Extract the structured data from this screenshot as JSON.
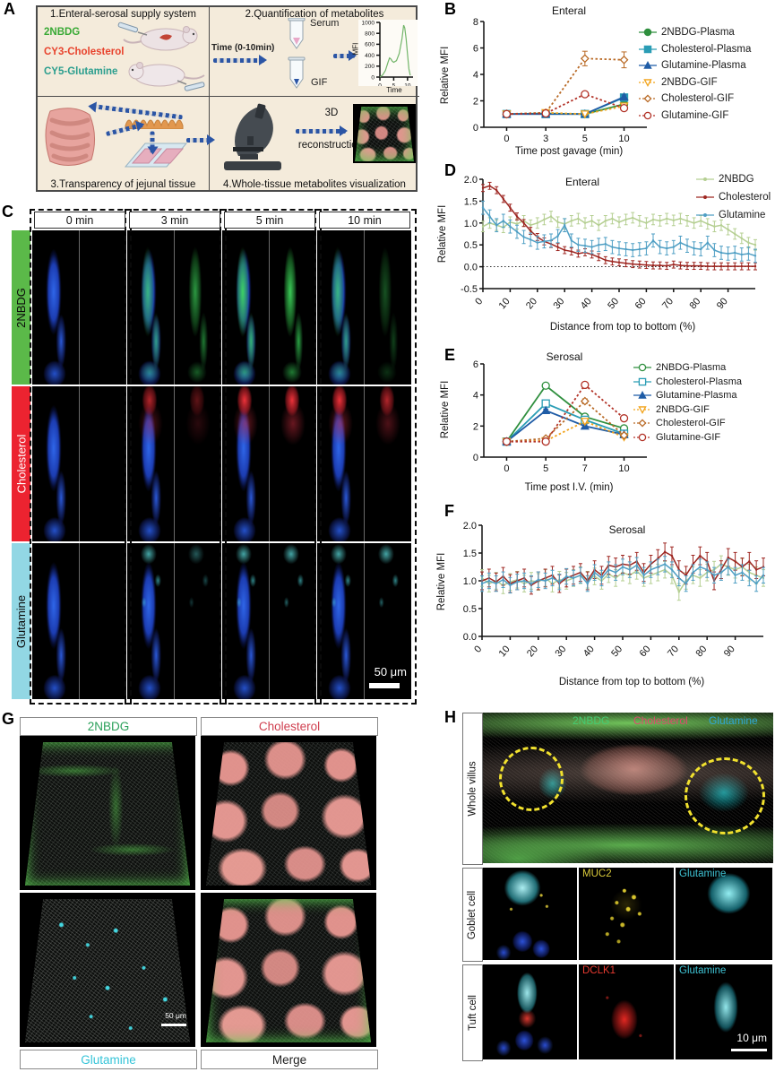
{
  "panels": {
    "A": {
      "label": "A",
      "box1": {
        "title": "1.Enteral-serosal supply system",
        "tracers": [
          {
            "name": "2NBDG",
            "color": "#39a935"
          },
          {
            "name": "CY3-Cholesterol",
            "color": "#e8432d"
          },
          {
            "name": "CY5-Glutamine",
            "color": "#2b9e8e"
          }
        ]
      },
      "box2": {
        "title": "2.Quantification of metabolites",
        "time_label": "Time (0-10min)",
        "tube_top": "Serum",
        "tube_bottom": "GIF",
        "inset_ylabel": "MFI",
        "inset_xlabel": "Time"
      },
      "box3": {
        "title": "3.Transparency of jejunal tissue"
      },
      "box4": {
        "title": "4.Whole-tissue metabolites visualization",
        "step1": "3D",
        "step2": "reconstruction"
      }
    },
    "B": {
      "label": "B"
    },
    "C": {
      "label": "C",
      "timepoints": [
        "0 min",
        "3 min",
        "5 min",
        "10 min"
      ],
      "rows": [
        {
          "name": "2NBDG",
          "color": "#5bb949"
        },
        {
          "name": "Cholesterol",
          "color": "#ec2330"
        },
        {
          "name": "Glutamine",
          "color": "#92d7e4"
        }
      ],
      "scalebar": "50 μm"
    },
    "D": {
      "label": "D"
    },
    "E": {
      "label": "E"
    },
    "F": {
      "label": "F"
    },
    "G": {
      "label": "G",
      "top_labels": [
        {
          "name": "2NBDG",
          "color": "#2ba05a"
        },
        {
          "name": "Cholesterol",
          "color": "#d04050"
        }
      ],
      "bottom_labels": [
        {
          "name": "Glutamine",
          "color": "#35c4d8"
        },
        {
          "name": "Merge",
          "color": "#222222"
        }
      ],
      "scalebar": "50 μm"
    },
    "H": {
      "label": "H",
      "legend": [
        {
          "name": "2NBDG",
          "color": "#45cb72"
        },
        {
          "name": "Cholesterol",
          "color": "#e0476e"
        },
        {
          "name": "Glutamine",
          "color": "#2fa8d8"
        }
      ],
      "row_labels": [
        "Whole villus",
        "Goblet cell",
        "Tuft cell"
      ],
      "goblet_marker": "MUC2",
      "goblet_right": "Glutamine",
      "tuft_marker": "DCLK1",
      "tuft_right": "Glutamine",
      "scalebar": "10 μm"
    }
  },
  "chart_data": [
    {
      "type": "line",
      "title": "",
      "ylabel": "MFI",
      "xlabel": "Time",
      "x_mode": "numeric",
      "xlim": [
        0,
        12
      ],
      "xticks": [
        "0",
        "5",
        "10"
      ],
      "ylim": [
        0,
        1000
      ],
      "yticks": [
        "0",
        "200",
        "400",
        "600",
        "800",
        "1000"
      ],
      "x_vals": [
        0,
        1,
        2,
        3,
        3.5,
        4,
        4.5,
        5,
        6,
        7,
        8,
        8.6,
        9,
        9.5,
        10,
        10.5,
        11
      ],
      "fs": 6.5,
      "lw": 1.2,
      "msize": 0,
      "margin": {
        "l": 24,
        "r": 5,
        "t": 3,
        "b": 10
      },
      "series": [
        {
          "name": "MFI",
          "color": "#72b569",
          "marker": "none",
          "values": [
            0,
            40,
            120,
            280,
            350,
            330,
            290,
            270,
            300,
            430,
            700,
            950,
            900,
            700,
            420,
            150,
            30
          ]
        }
      ]
    },
    {
      "type": "line",
      "title": "Enteral",
      "ylabel": "Relative MFI",
      "xlabel": "Time post gavage (min)",
      "x_mode": "categorical",
      "x": [
        "0",
        "3",
        "5",
        "10"
      ],
      "ylim": [
        0,
        8
      ],
      "yticks": [
        "0",
        "2",
        "4",
        "6",
        "8"
      ],
      "fs": 11,
      "lw": 1.8,
      "msize": 4,
      "margin": {
        "l": 30,
        "r": 16,
        "t": 8,
        "b": 24
      },
      "legend_pos": "right",
      "series": [
        {
          "name": "2NBDG-Plasma",
          "color": "#2f8f3e",
          "marker": "circle",
          "open": false,
          "dash": false,
          "values": [
            1.0,
            1.05,
            1.0,
            1.75
          ],
          "err": [
            0.05,
            0.08,
            0.08,
            0.2
          ]
        },
        {
          "name": "Cholesterol-Plasma",
          "color": "#2a9db5",
          "marker": "square",
          "open": false,
          "dash": false,
          "values": [
            1.0,
            1.0,
            1.0,
            2.25
          ],
          "err": [
            0.05,
            0.05,
            0.08,
            0.15
          ]
        },
        {
          "name": "Glutamine-Plasma",
          "color": "#1f5ca6",
          "marker": "triangle",
          "open": false,
          "dash": false,
          "values": [
            1.0,
            1.0,
            1.0,
            2.3
          ],
          "err": [
            0.05,
            0.05,
            0.08,
            0.15
          ]
        },
        {
          "name": "2NBDG-GIF",
          "color": "#f2a31b",
          "marker": "tridown",
          "open": true,
          "dash": true,
          "values": [
            1.0,
            1.1,
            1.0,
            1.6
          ],
          "err": [
            0.05,
            0.1,
            0.08,
            0.15
          ]
        },
        {
          "name": "Cholesterol-GIF",
          "color": "#b96a26",
          "marker": "diamond",
          "open": true,
          "dash": true,
          "values": [
            1.0,
            1.1,
            5.2,
            5.1
          ],
          "err": [
            0.05,
            0.1,
            0.55,
            0.6
          ]
        },
        {
          "name": "Glutamine-GIF",
          "color": "#b23227",
          "marker": "circle",
          "open": true,
          "dash": true,
          "values": [
            1.0,
            1.05,
            2.5,
            1.45
          ],
          "err": [
            0.05,
            0.08,
            0.15,
            0.12
          ]
        }
      ]
    },
    {
      "type": "line",
      "title": "Enteral",
      "ylabel": "Relative MFI",
      "xlabel": "Distance from top to bottom (%)",
      "x_mode": "numeric",
      "xlim": [
        0,
        100
      ],
      "xticks": [
        "0",
        "10",
        "20",
        "30",
        "40",
        "50",
        "60",
        "70",
        "80",
        "90"
      ],
      "rotate_xticks": true,
      "ylim": [
        -0.5,
        2.0
      ],
      "yticks": [
        "-0.5",
        "0.0",
        "0.5",
        "1.0",
        "1.5",
        "2.0"
      ],
      "zero_line": true,
      "fs": 11,
      "lw": 1.5,
      "msize": 2,
      "margin": {
        "l": 36,
        "r": 8,
        "t": 10,
        "b": 40
      },
      "x_vals": [
        0,
        2.5,
        5,
        7.5,
        10,
        12.5,
        15,
        17.5,
        20,
        22.5,
        25,
        27.5,
        30,
        32.5,
        35,
        37.5,
        40,
        42.5,
        45,
        47.5,
        50,
        52.5,
        55,
        57.5,
        60,
        62.5,
        65,
        67.5,
        70,
        72.5,
        75,
        77.5,
        80,
        82.5,
        85,
        87.5,
        90,
        92.5,
        95,
        97.5,
        100
      ],
      "series": [
        {
          "name": "2NBDG",
          "color": "#b5cf92",
          "marker": "dot",
          "err_const": 0.12,
          "values": [
            0.92,
            1.0,
            0.95,
            0.9,
            1.02,
            0.98,
            1.05,
            0.95,
            1.0,
            1.08,
            1.15,
            1.02,
            0.98,
            1.05,
            1.1,
            1.0,
            1.05,
            0.95,
            1.05,
            1.1,
            1.02,
            1.08,
            1.12,
            1.05,
            1.0,
            1.08,
            1.05,
            1.1,
            1.06,
            1.1,
            1.05,
            1.0,
            1.05,
            0.98,
            0.92,
            0.95,
            0.85,
            0.75,
            0.65,
            0.55,
            0.5
          ]
        },
        {
          "name": "Cholesterol",
          "color": "#9e2722",
          "marker": "dot",
          "err_const": 0.08,
          "values": [
            1.8,
            1.85,
            1.75,
            1.55,
            1.35,
            1.15,
            1.0,
            0.82,
            0.68,
            0.58,
            0.52,
            0.45,
            0.38,
            0.35,
            0.3,
            0.33,
            0.28,
            0.22,
            0.15,
            0.12,
            0.1,
            0.08,
            0.06,
            0.05,
            0.04,
            0.03,
            0.03,
            0.02,
            0.05,
            0.03,
            0.02,
            0.02,
            0.02,
            0.01,
            0.01,
            0.01,
            0.01,
            0.01,
            0.01,
            0.01,
            0.01
          ]
        },
        {
          "name": "Glutamine",
          "color": "#4f9fc4",
          "marker": "dot",
          "err_const": 0.15,
          "values": [
            1.35,
            1.15,
            0.95,
            1.05,
            0.92,
            0.8,
            0.68,
            0.62,
            0.55,
            0.58,
            0.6,
            0.7,
            0.95,
            0.6,
            0.5,
            0.48,
            0.45,
            0.5,
            0.52,
            0.45,
            0.42,
            0.4,
            0.38,
            0.4,
            0.42,
            0.6,
            0.45,
            0.42,
            0.45,
            0.55,
            0.48,
            0.42,
            0.4,
            0.55,
            0.38,
            0.32,
            0.3,
            0.32,
            0.28,
            0.3,
            0.25
          ]
        }
      ]
    },
    {
      "type": "line",
      "title": "Serosal",
      "ylabel": "Relative MFI",
      "xlabel": "Time post I.V. (min)",
      "x_mode": "categorical",
      "x": [
        "0",
        "5",
        "7",
        "10"
      ],
      "ylim": [
        0,
        6
      ],
      "yticks": [
        "0",
        "2",
        "4",
        "6"
      ],
      "fs": 11,
      "lw": 1.8,
      "msize": 4,
      "margin": {
        "l": 30,
        "r": 16,
        "t": 6,
        "b": 24
      },
      "series": [
        {
          "name": "2NBDG-Plasma",
          "color": "#2f8f3e",
          "marker": "circle",
          "open": true,
          "dash": false,
          "values": [
            1.0,
            4.6,
            2.6,
            1.85
          ],
          "err": [
            0.05,
            0.15,
            0.12,
            0.1
          ]
        },
        {
          "name": "Cholesterol-Plasma",
          "color": "#2a9db5",
          "marker": "square",
          "open": true,
          "dash": false,
          "values": [
            1.0,
            3.45,
            2.4,
            1.5
          ],
          "err": [
            0.05,
            0.12,
            0.1,
            0.08
          ]
        },
        {
          "name": "Glutamine-Plasma",
          "color": "#1f5ca6",
          "marker": "triangle",
          "open": false,
          "dash": false,
          "values": [
            1.0,
            3.0,
            2.0,
            1.45
          ],
          "err": [
            0.05,
            0.1,
            0.08,
            0.08
          ]
        },
        {
          "name": "2NBDG-GIF",
          "color": "#f2a31b",
          "marker": "tridown",
          "open": true,
          "dash": true,
          "values": [
            1.0,
            1.05,
            2.3,
            1.3
          ],
          "err": [
            0.05,
            0.08,
            0.12,
            0.08
          ]
        },
        {
          "name": "Cholesterol-GIF",
          "color": "#b96a26",
          "marker": "diamond",
          "open": true,
          "dash": true,
          "values": [
            1.0,
            1.2,
            3.6,
            1.4
          ],
          "err": [
            0.05,
            0.1,
            0.15,
            0.1
          ]
        },
        {
          "name": " Glutamine-GIF",
          "color": "#b23227",
          "marker": "circle",
          "open": true,
          "dash": true,
          "values": [
            1.0,
            1.0,
            4.65,
            2.5
          ],
          "err": [
            0.05,
            0.08,
            0.15,
            0.12
          ]
        }
      ]
    },
    {
      "type": "line",
      "title": "Serosal",
      "ylabel": "Relative MFI",
      "xlabel": "Distance from top to bottom (%)",
      "x_mode": "numeric",
      "xlim": [
        0,
        100
      ],
      "xticks": [
        "0",
        "10",
        "20",
        "30",
        "40",
        "50",
        "60",
        "70",
        "80",
        "90"
      ],
      "rotate_xticks": true,
      "ylim": [
        0,
        2.0
      ],
      "yticks": [
        "0.0",
        "0.5",
        "1.0",
        "1.5",
        "2.0"
      ],
      "fs": 11,
      "lw": 1.5,
      "msize": 2,
      "margin": {
        "l": 36,
        "r": 8,
        "t": 14,
        "b": 40
      },
      "x_vals": [
        0,
        2.5,
        5,
        7.5,
        10,
        12.5,
        15,
        17.5,
        20,
        22.5,
        25,
        27.5,
        30,
        32.5,
        35,
        37.5,
        40,
        42.5,
        45,
        47.5,
        50,
        52.5,
        55,
        57.5,
        60,
        62.5,
        65,
        67.5,
        70,
        72.5,
        75,
        77.5,
        80,
        82.5,
        85,
        87.5,
        90,
        92.5,
        95,
        97.5,
        100
      ],
      "series": [
        {
          "name": "2NBDG",
          "color": "#b5cf92",
          "marker": "dot",
          "err_const": 0.15,
          "values": [
            1.05,
            0.95,
            1.0,
            0.92,
            0.98,
            1.02,
            0.95,
            1.0,
            0.98,
            1.05,
            0.95,
            1.02,
            1.0,
            1.05,
            1.1,
            1.02,
            1.08,
            1.0,
            1.12,
            1.05,
            1.15,
            1.1,
            1.18,
            1.05,
            1.1,
            1.15,
            1.2,
            1.1,
            0.8,
            1.0,
            1.1,
            1.05,
            1.15,
            1.2,
            1.3,
            1.25,
            1.2,
            1.25,
            1.15,
            1.1,
            1.05
          ]
        },
        {
          "name": "Cholesterol",
          "color": "#9e2722",
          "marker": "dot",
          "err_const": 0.16,
          "values": [
            1.0,
            1.05,
            0.98,
            1.08,
            0.95,
            1.0,
            1.05,
            0.92,
            1.0,
            1.05,
            1.1,
            0.95,
            1.05,
            1.1,
            1.15,
            1.0,
            1.2,
            1.1,
            1.28,
            1.25,
            1.3,
            1.28,
            1.35,
            1.15,
            1.3,
            1.4,
            1.52,
            1.45,
            1.2,
            1.1,
            1.3,
            1.45,
            1.35,
            1.0,
            1.2,
            1.42,
            1.35,
            1.25,
            1.35,
            1.2,
            1.25
          ]
        },
        {
          "name": "Glutamine",
          "color": "#4f9fc4",
          "marker": "dot",
          "err_const": 0.14,
          "values": [
            0.95,
            1.0,
            0.95,
            1.02,
            0.92,
            0.98,
            1.0,
            0.95,
            1.02,
            1.0,
            1.05,
            0.98,
            1.08,
            1.05,
            1.1,
            0.95,
            1.15,
            1.05,
            1.2,
            1.15,
            1.25,
            1.2,
            1.28,
            1.1,
            1.2,
            1.25,
            1.3,
            1.2,
            1.05,
            0.95,
            1.15,
            1.25,
            1.2,
            1.1,
            1.15,
            1.25,
            1.1,
            1.15,
            1.05,
            0.95,
            1.1
          ]
        }
      ]
    }
  ]
}
